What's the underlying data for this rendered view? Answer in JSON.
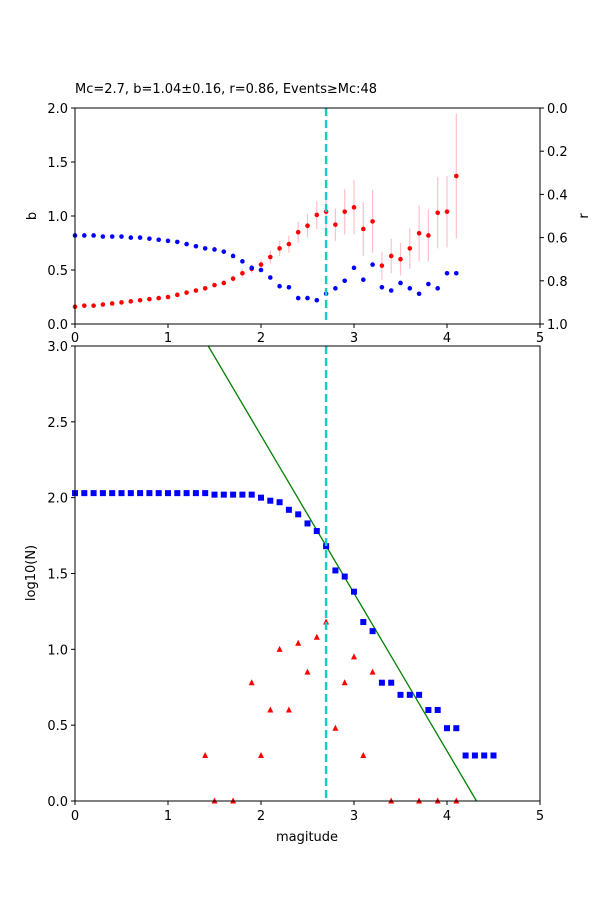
{
  "chart_data": [
    {
      "type": "scatter",
      "title": "Mc=2.7, b=1.04±0.16, r=0.86, Events≥Mc:48",
      "xlabel": "",
      "ylabel": "b",
      "ylabel_right": "r",
      "xlim": [
        0,
        5
      ],
      "ylim": [
        0,
        2
      ],
      "ylim_right": [
        1,
        0
      ],
      "xticks": [
        "0",
        "1",
        "2",
        "3",
        "4",
        "5"
      ],
      "yticks": [
        "0.0",
        "0.5",
        "1.0",
        "1.5",
        "2.0"
      ],
      "yticks_right": [
        "0.0",
        "0.2",
        "0.4",
        "0.6",
        "0.8",
        "1.0"
      ],
      "mc_line": 2.7,
      "colors": {
        "b": "#ff0000",
        "errorbar": "#ffc0cb",
        "r": "#0000ff",
        "mc": "#20c8c8"
      },
      "series": [
        {
          "axis": "left",
          "x": [
            0.0,
            0.1,
            0.2,
            0.3,
            0.4,
            0.5,
            0.6,
            0.7,
            0.8,
            0.9,
            1.0,
            1.1,
            1.2,
            1.3,
            1.4,
            1.5,
            1.6,
            1.7,
            1.8,
            1.9,
            2.0,
            2.1,
            2.2,
            2.3,
            2.4,
            2.5,
            2.6,
            2.7,
            2.8,
            2.9,
            3.0,
            3.1,
            3.2,
            3.3,
            3.4,
            3.5,
            3.6,
            3.7,
            3.8,
            3.9,
            4.0,
            4.1
          ],
          "values": [
            0.16,
            0.17,
            0.17,
            0.18,
            0.19,
            0.2,
            0.21,
            0.22,
            0.23,
            0.24,
            0.25,
            0.27,
            0.29,
            0.31,
            0.33,
            0.36,
            0.38,
            0.42,
            0.47,
            0.51,
            0.55,
            0.62,
            0.7,
            0.74,
            0.85,
            0.91,
            1.01,
            1.04,
            0.92,
            1.04,
            1.08,
            0.88,
            0.95,
            0.54,
            0.63,
            0.6,
            0.7,
            0.84,
            0.82,
            1.03,
            1.04,
            1.37
          ],
          "err": [
            0.01,
            0.01,
            0.01,
            0.01,
            0.01,
            0.01,
            0.01,
            0.01,
            0.01,
            0.01,
            0.01,
            0.01,
            0.01,
            0.02,
            0.02,
            0.02,
            0.02,
            0.03,
            0.04,
            0.04,
            0.05,
            0.06,
            0.07,
            0.08,
            0.1,
            0.11,
            0.13,
            0.16,
            0.15,
            0.21,
            0.25,
            0.25,
            0.29,
            0.13,
            0.16,
            0.15,
            0.19,
            0.26,
            0.24,
            0.33,
            0.33,
            0.58
          ]
        },
        {
          "axis": "right",
          "x": [
            0.0,
            0.1,
            0.2,
            0.3,
            0.4,
            0.5,
            0.6,
            0.7,
            0.8,
            0.9,
            1.0,
            1.1,
            1.2,
            1.3,
            1.4,
            1.5,
            1.6,
            1.7,
            1.8,
            1.9,
            2.0,
            2.1,
            2.2,
            2.3,
            2.4,
            2.5,
            2.6,
            2.7,
            2.8,
            2.9,
            3.0,
            3.1,
            3.2,
            3.3,
            3.4,
            3.5,
            3.6,
            3.7,
            3.8,
            3.9,
            4.0,
            4.1
          ],
          "values": [
            0.59,
            0.59,
            0.59,
            0.595,
            0.595,
            0.595,
            0.6,
            0.6,
            0.605,
            0.61,
            0.615,
            0.62,
            0.63,
            0.64,
            0.65,
            0.655,
            0.665,
            0.685,
            0.71,
            0.74,
            0.75,
            0.785,
            0.825,
            0.83,
            0.88,
            0.88,
            0.89,
            0.86,
            0.835,
            0.8,
            0.74,
            0.795,
            0.725,
            0.83,
            0.845,
            0.81,
            0.835,
            0.86,
            0.815,
            0.835,
            0.765,
            0.765
          ]
        }
      ]
    },
    {
      "type": "scatter",
      "title": "",
      "xlabel": "magitude",
      "ylabel": "log10(N)",
      "xlim": [
        0,
        5
      ],
      "ylim": [
        0,
        3
      ],
      "xticks": [
        "0",
        "1",
        "2",
        "3",
        "4",
        "5"
      ],
      "yticks": [
        "0.0",
        "0.5",
        "1.0",
        "1.5",
        "2.0",
        "2.5",
        "3.0"
      ],
      "mc_line": 2.7,
      "fit_line": {
        "a": 4.49,
        "b": 1.04
      },
      "colors": {
        "cumulative": "#0000ff",
        "noncumulative": "#ff0000",
        "fit": "#008000",
        "mc": "#20c8c8"
      },
      "series": [
        {
          "marker": "square",
          "x": [
            0.0,
            0.1,
            0.2,
            0.3,
            0.4,
            0.5,
            0.6,
            0.7,
            0.8,
            0.9,
            1.0,
            1.1,
            1.2,
            1.3,
            1.4,
            1.5,
            1.6,
            1.7,
            1.8,
            1.9,
            2.0,
            2.1,
            2.2,
            2.3,
            2.4,
            2.5,
            2.6,
            2.7,
            2.8,
            2.9,
            3.0,
            3.1,
            3.2,
            3.3,
            3.4,
            3.5,
            3.6,
            3.7,
            3.8,
            3.9,
            4.0,
            4.1,
            4.2,
            4.3,
            4.4,
            4.5
          ],
          "values": [
            2.03,
            2.03,
            2.03,
            2.03,
            2.03,
            2.03,
            2.03,
            2.03,
            2.03,
            2.03,
            2.03,
            2.03,
            2.03,
            2.03,
            2.03,
            2.02,
            2.02,
            2.02,
            2.02,
            2.02,
            2.0,
            1.98,
            1.97,
            1.92,
            1.89,
            1.83,
            1.78,
            1.68,
            1.52,
            1.48,
            1.38,
            1.18,
            1.12,
            0.78,
            0.78,
            0.7,
            0.7,
            0.7,
            0.6,
            0.6,
            0.48,
            0.48,
            0.3,
            0.3,
            0.3,
            0.3
          ]
        },
        {
          "marker": "triangle",
          "x": [
            1.4,
            1.5,
            1.7,
            1.9,
            2.0,
            2.1,
            2.2,
            2.3,
            2.4,
            2.5,
            2.6,
            2.7,
            2.8,
            2.9,
            3.0,
            3.1,
            3.2,
            3.4,
            3.7,
            3.9,
            4.1
          ],
          "values": [
            0.3,
            0.0,
            0.0,
            0.78,
            0.3,
            0.6,
            1.0,
            0.6,
            1.04,
            0.85,
            1.08,
            1.18,
            0.48,
            0.78,
            0.95,
            0.3,
            0.85,
            0.0,
            0.0,
            0.0,
            0.0
          ]
        }
      ]
    }
  ]
}
